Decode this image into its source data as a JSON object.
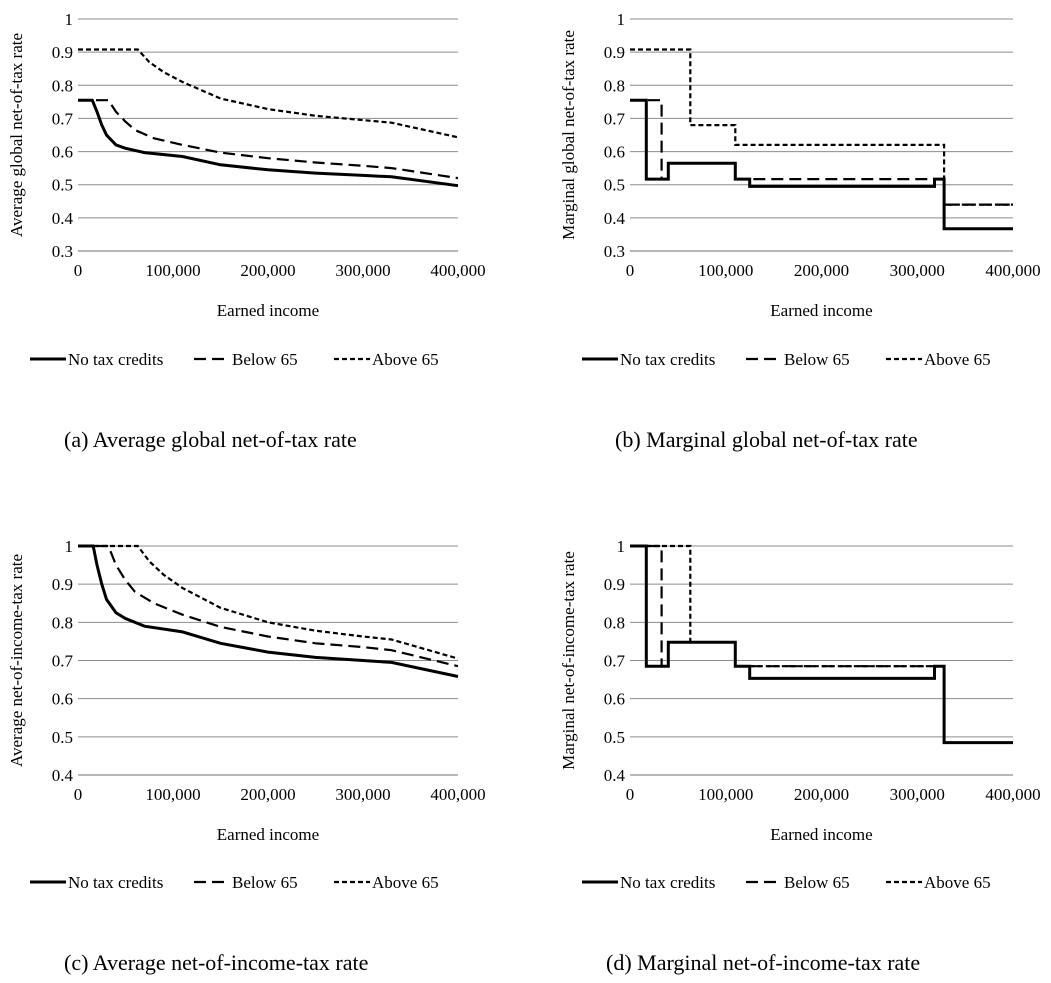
{
  "panels": [
    {
      "caption": "(a)  Average global net-of-tax rate",
      "chart_data": {
        "type": "line",
        "title": "",
        "xlabel": "Earned income",
        "ylabel": "Average global net-of-tax rate",
        "xlim": [
          0,
          400000
        ],
        "ylim": [
          0.3,
          1
        ],
        "xticks": [
          0,
          100000,
          200000,
          300000,
          400000
        ],
        "xtick_labels": [
          "0",
          "100,000",
          "200,000",
          "300,000",
          "400,000"
        ],
        "yticks": [
          0.3,
          0.4,
          0.5,
          0.6,
          0.7,
          0.8,
          0.9,
          1
        ],
        "ytick_labels": [
          "0.3",
          "0.4",
          "0.5",
          "0.6",
          "0.7",
          "0.8",
          "0.9",
          "1"
        ],
        "grid": "horizontal",
        "legend_position": "bottom",
        "series": [
          {
            "name": "No tax credits",
            "style": "solid",
            "x": [
              0,
              15000,
              20000,
              25000,
              30000,
              40000,
              50000,
              70000,
              110000,
              150000,
              200000,
              250000,
              300000,
              330000,
              400000
            ],
            "y": [
              0.755,
              0.755,
              0.72,
              0.68,
              0.65,
              0.62,
              0.61,
              0.597,
              0.585,
              0.56,
              0.545,
              0.535,
              0.528,
              0.524,
              0.497
            ]
          },
          {
            "name": "Below 65",
            "style": "dashed",
            "x": [
              0,
              32000,
              40000,
              50000,
              60000,
              80000,
              110000,
              150000,
              200000,
              250000,
              300000,
              330000,
              400000
            ],
            "y": [
              0.755,
              0.755,
              0.72,
              0.69,
              0.665,
              0.64,
              0.62,
              0.597,
              0.58,
              0.567,
              0.557,
              0.55,
              0.52
            ]
          },
          {
            "name": "Above 65",
            "style": "short-dashed",
            "x": [
              0,
              63000,
              75000,
              90000,
              110000,
              150000,
              200000,
              250000,
              300000,
              330000,
              400000
            ],
            "y": [
              0.908,
              0.908,
              0.87,
              0.84,
              0.81,
              0.76,
              0.728,
              0.708,
              0.695,
              0.687,
              0.643
            ]
          }
        ]
      }
    },
    {
      "caption": "(b)  Marginal global net-of-tax rate",
      "chart_data": {
        "type": "line",
        "title": "",
        "xlabel": "Earned income",
        "ylabel": "Marginal global net-of-tax rate",
        "xlim": [
          0,
          400000
        ],
        "ylim": [
          0.3,
          1
        ],
        "xticks": [
          0,
          100000,
          200000,
          300000,
          400000
        ],
        "xtick_labels": [
          "0",
          "100,000",
          "200,000",
          "300,000",
          "400,000"
        ],
        "yticks": [
          0.3,
          0.4,
          0.5,
          0.6,
          0.7,
          0.8,
          0.9,
          1
        ],
        "ytick_labels": [
          "0.3",
          "0.4",
          "0.5",
          "0.6",
          "0.7",
          "0.8",
          "0.9",
          "1"
        ],
        "grid": "horizontal",
        "legend_position": "bottom",
        "series": [
          {
            "name": "No tax credits",
            "style": "solid",
            "x": [
              0,
              17000,
              17000,
              40000,
              40000,
              110000,
              110000,
              125000,
              125000,
              318000,
              318000,
              328000,
              328000,
              400000
            ],
            "y": [
              0.755,
              0.755,
              0.517,
              0.517,
              0.565,
              0.565,
              0.517,
              0.517,
              0.495,
              0.495,
              0.517,
              0.517,
              0.367,
              0.367
            ]
          },
          {
            "name": "Below 65",
            "style": "dashed",
            "x": [
              0,
              33000,
              33000,
              40000,
              40000,
              110000,
              110000,
              318000,
              318000,
              328000,
              328000,
              400000
            ],
            "y": [
              0.755,
              0.755,
              0.517,
              0.517,
              0.565,
              0.565,
              0.517,
              0.517,
              0.517,
              0.517,
              0.44,
              0.44
            ]
          },
          {
            "name": "Above 65",
            "style": "short-dashed",
            "x": [
              0,
              63000,
              63000,
              110000,
              110000,
              328000,
              328000,
              400000
            ],
            "y": [
              0.908,
              0.908,
              0.68,
              0.68,
              0.62,
              0.62,
              0.44,
              0.44
            ]
          }
        ]
      }
    },
    {
      "caption": "(c)  Average net-of-income-tax rate",
      "chart_data": {
        "type": "line",
        "title": "",
        "xlabel": "Earned income",
        "ylabel": "Average net-of-income-tax rate",
        "xlim": [
          0,
          400000
        ],
        "ylim": [
          0.4,
          1
        ],
        "xticks": [
          0,
          100000,
          200000,
          300000,
          400000
        ],
        "xtick_labels": [
          "0",
          "100,000",
          "200,000",
          "300,000",
          "400,000"
        ],
        "yticks": [
          0.4,
          0.5,
          0.6,
          0.7,
          0.8,
          0.9,
          1
        ],
        "ytick_labels": [
          "0.4",
          "0.5",
          "0.6",
          "0.7",
          "0.8",
          "0.9",
          "1"
        ],
        "grid": "horizontal",
        "legend_position": "bottom",
        "series": [
          {
            "name": "No tax credits",
            "style": "solid",
            "x": [
              0,
              16000,
              20000,
              25000,
              30000,
              40000,
              50000,
              70000,
              110000,
              150000,
              200000,
              250000,
              300000,
              330000,
              400000
            ],
            "y": [
              1,
              1,
              0.95,
              0.9,
              0.86,
              0.825,
              0.81,
              0.79,
              0.775,
              0.745,
              0.722,
              0.708,
              0.7,
              0.695,
              0.658
            ]
          },
          {
            "name": "Below 65",
            "style": "dashed",
            "x": [
              0,
              32000,
              40000,
              50000,
              60000,
              80000,
              110000,
              150000,
              200000,
              250000,
              300000,
              330000,
              400000
            ],
            "y": [
              1,
              1,
              0.95,
              0.91,
              0.88,
              0.85,
              0.82,
              0.788,
              0.763,
              0.745,
              0.735,
              0.727,
              0.685
            ]
          },
          {
            "name": "Above 65",
            "style": "short-dashed",
            "x": [
              0,
              63000,
              75000,
              90000,
              110000,
              150000,
              200000,
              250000,
              300000,
              330000,
              400000
            ],
            "y": [
              1,
              1,
              0.96,
              0.925,
              0.89,
              0.838,
              0.8,
              0.778,
              0.763,
              0.755,
              0.705
            ]
          }
        ]
      }
    },
    {
      "caption": "(d)  Marginal net-of-income-tax rate",
      "chart_data": {
        "type": "line",
        "title": "",
        "xlabel": "Earned income",
        "ylabel": "Marginal net-of-income-tax rate",
        "xlim": [
          0,
          400000
        ],
        "ylim": [
          0.4,
          1
        ],
        "xticks": [
          0,
          100000,
          200000,
          300000,
          400000
        ],
        "xtick_labels": [
          "0",
          "100,000",
          "200,000",
          "300,000",
          "400,000"
        ],
        "yticks": [
          0.4,
          0.5,
          0.6,
          0.7,
          0.8,
          0.9,
          1
        ],
        "ytick_labels": [
          "0.4",
          "0.5",
          "0.6",
          "0.7",
          "0.8",
          "0.9",
          "1"
        ],
        "grid": "horizontal",
        "legend_position": "bottom",
        "series": [
          {
            "name": "No tax credits",
            "style": "solid",
            "x": [
              0,
              17000,
              17000,
              40000,
              40000,
              110000,
              110000,
              125000,
              125000,
              318000,
              318000,
              328000,
              328000,
              400000
            ],
            "y": [
              1,
              1,
              0.685,
              0.685,
              0.748,
              0.748,
              0.685,
              0.685,
              0.653,
              0.653,
              0.685,
              0.685,
              0.485,
              0.485
            ]
          },
          {
            "name": "Below 65",
            "style": "dashed",
            "x": [
              0,
              33000,
              33000,
              40000,
              40000,
              110000,
              110000,
              328000,
              328000,
              400000
            ],
            "y": [
              1,
              1,
              0.685,
              0.685,
              0.748,
              0.748,
              0.685,
              0.685,
              0.485,
              0.485
            ]
          },
          {
            "name": "Above 65",
            "style": "short-dashed",
            "x": [
              0,
              63000,
              63000,
              110000,
              110000,
              328000,
              328000,
              400000
            ],
            "y": [
              1,
              1,
              0.748,
              0.748,
              0.685,
              0.685,
              0.485,
              0.485
            ]
          }
        ]
      }
    }
  ]
}
